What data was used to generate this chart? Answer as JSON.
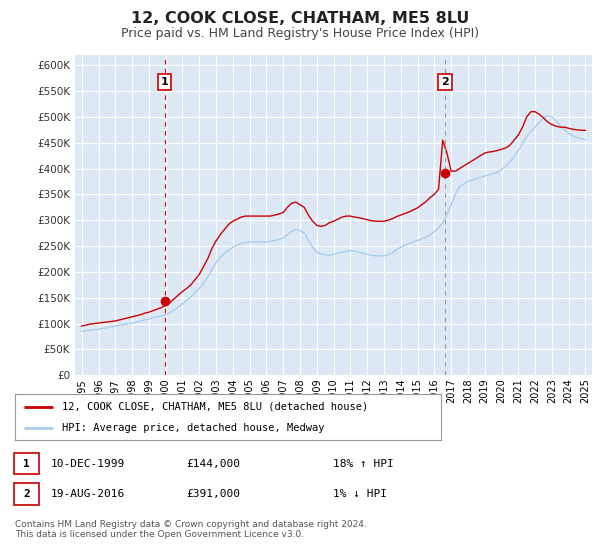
{
  "title": "12, COOK CLOSE, CHATHAM, ME5 8LU",
  "subtitle": "Price paid vs. HM Land Registry's House Price Index (HPI)",
  "title_fontsize": 11.5,
  "subtitle_fontsize": 9,
  "background_color": "#ffffff",
  "plot_bg_color": "#dce9f5",
  "grid_color": "#ffffff",
  "red_line_color": "#cc0000",
  "blue_line_color": "#aaccee",
  "marker_color": "#cc0000",
  "ylim": [
    0,
    620000
  ],
  "yticks": [
    0,
    50000,
    100000,
    150000,
    200000,
    250000,
    300000,
    350000,
    400000,
    450000,
    500000,
    550000,
    600000
  ],
  "ytick_labels": [
    "£0",
    "£50K",
    "£100K",
    "£150K",
    "£200K",
    "£250K",
    "£300K",
    "£350K",
    "£400K",
    "£450K",
    "£500K",
    "£550K",
    "£600K"
  ],
  "xlim_start": 1994.6,
  "xlim_end": 2025.4,
  "xticks": [
    1995,
    1996,
    1997,
    1998,
    1999,
    2000,
    2001,
    2002,
    2003,
    2004,
    2005,
    2006,
    2007,
    2008,
    2009,
    2010,
    2011,
    2012,
    2013,
    2014,
    2015,
    2016,
    2017,
    2018,
    2019,
    2020,
    2021,
    2022,
    2023,
    2024,
    2025
  ],
  "legend_label_red": "12, COOK CLOSE, CHATHAM, ME5 8LU (detached house)",
  "legend_label_blue": "HPI: Average price, detached house, Medway",
  "sale1_x": 1999.94,
  "sale1_y": 144000,
  "sale1_label": "1",
  "sale1_vline_color": "#cc0000",
  "sale2_x": 2016.63,
  "sale2_y": 391000,
  "sale2_label": "2",
  "sale2_vline_color": "#999999",
  "table_row1_num": "1",
  "table_row1_date": "10-DEC-1999",
  "table_row1_price": "£144,000",
  "table_row1_hpi": "18% ↑ HPI",
  "table_row2_num": "2",
  "table_row2_date": "19-AUG-2016",
  "table_row2_price": "£391,000",
  "table_row2_hpi": "1% ↓ HPI",
  "footer_text": "Contains HM Land Registry data © Crown copyright and database right 2024.\nThis data is licensed under the Open Government Licence v3.0.",
  "red_line_data_x": [
    1995.0,
    1995.25,
    1995.5,
    1995.75,
    1996.0,
    1996.25,
    1996.5,
    1996.75,
    1997.0,
    1997.25,
    1997.5,
    1997.75,
    1998.0,
    1998.25,
    1998.5,
    1998.75,
    1999.0,
    1999.25,
    1999.5,
    1999.75,
    2000.0,
    2000.25,
    2000.5,
    2000.75,
    2001.0,
    2001.25,
    2001.5,
    2001.75,
    2002.0,
    2002.25,
    2002.5,
    2002.75,
    2003.0,
    2003.25,
    2003.5,
    2003.75,
    2004.0,
    2004.25,
    2004.5,
    2004.75,
    2005.0,
    2005.25,
    2005.5,
    2005.75,
    2006.0,
    2006.25,
    2006.5,
    2006.75,
    2007.0,
    2007.25,
    2007.5,
    2007.75,
    2008.0,
    2008.25,
    2008.5,
    2008.75,
    2009.0,
    2009.25,
    2009.5,
    2009.75,
    2010.0,
    2010.25,
    2010.5,
    2010.75,
    2011.0,
    2011.25,
    2011.5,
    2011.75,
    2012.0,
    2012.25,
    2012.5,
    2012.75,
    2013.0,
    2013.25,
    2013.5,
    2013.75,
    2014.0,
    2014.25,
    2014.5,
    2014.75,
    2015.0,
    2015.25,
    2015.5,
    2015.75,
    2016.0,
    2016.25,
    2016.5,
    2016.75,
    2017.0,
    2017.25,
    2017.5,
    2017.75,
    2018.0,
    2018.25,
    2018.5,
    2018.75,
    2019.0,
    2019.25,
    2019.5,
    2019.75,
    2020.0,
    2020.25,
    2020.5,
    2020.75,
    2021.0,
    2021.25,
    2021.5,
    2021.75,
    2022.0,
    2022.25,
    2022.5,
    2022.75,
    2023.0,
    2023.25,
    2023.5,
    2023.75,
    2024.0,
    2024.25,
    2024.5,
    2024.75,
    2025.0
  ],
  "red_line_data_y": [
    95000,
    97000,
    99000,
    100000,
    101000,
    102000,
    103000,
    104000,
    105000,
    107000,
    109000,
    111000,
    113000,
    115000,
    117000,
    120000,
    122000,
    125000,
    128000,
    131000,
    135000,
    140000,
    148000,
    155000,
    162000,
    168000,
    175000,
    185000,
    195000,
    210000,
    225000,
    245000,
    260000,
    272000,
    282000,
    292000,
    298000,
    302000,
    306000,
    308000,
    308000,
    308000,
    308000,
    308000,
    308000,
    308000,
    310000,
    312000,
    315000,
    325000,
    333000,
    335000,
    330000,
    325000,
    310000,
    298000,
    290000,
    288000,
    290000,
    295000,
    298000,
    302000,
    306000,
    308000,
    308000,
    306000,
    305000,
    303000,
    301000,
    299000,
    298000,
    298000,
    298000,
    300000,
    303000,
    307000,
    310000,
    313000,
    316000,
    320000,
    324000,
    330000,
    336000,
    344000,
    350000,
    360000,
    455000,
    430000,
    395000,
    395000,
    400000,
    405000,
    410000,
    415000,
    420000,
    425000,
    430000,
    432000,
    433000,
    435000,
    437000,
    440000,
    445000,
    455000,
    465000,
    480000,
    500000,
    510000,
    510000,
    505000,
    498000,
    490000,
    485000,
    482000,
    480000,
    480000,
    478000,
    476000,
    475000,
    474000,
    474000
  ],
  "blue_line_data_x": [
    1995.0,
    1995.25,
    1995.5,
    1995.75,
    1996.0,
    1996.25,
    1996.5,
    1996.75,
    1997.0,
    1997.25,
    1997.5,
    1997.75,
    1998.0,
    1998.25,
    1998.5,
    1998.75,
    1999.0,
    1999.25,
    1999.5,
    1999.75,
    2000.0,
    2000.25,
    2000.5,
    2000.75,
    2001.0,
    2001.25,
    2001.5,
    2001.75,
    2002.0,
    2002.25,
    2002.5,
    2002.75,
    2003.0,
    2003.25,
    2003.5,
    2003.75,
    2004.0,
    2004.25,
    2004.5,
    2004.75,
    2005.0,
    2005.25,
    2005.5,
    2005.75,
    2006.0,
    2006.25,
    2006.5,
    2006.75,
    2007.0,
    2007.25,
    2007.5,
    2007.75,
    2008.0,
    2008.25,
    2008.5,
    2008.75,
    2009.0,
    2009.25,
    2009.5,
    2009.75,
    2010.0,
    2010.25,
    2010.5,
    2010.75,
    2011.0,
    2011.25,
    2011.5,
    2011.75,
    2012.0,
    2012.25,
    2012.5,
    2012.75,
    2013.0,
    2013.25,
    2013.5,
    2013.75,
    2014.0,
    2014.25,
    2014.5,
    2014.75,
    2015.0,
    2015.25,
    2015.5,
    2015.75,
    2016.0,
    2016.25,
    2016.5,
    2016.75,
    2017.0,
    2017.25,
    2017.5,
    2017.75,
    2018.0,
    2018.25,
    2018.5,
    2018.75,
    2019.0,
    2019.25,
    2019.5,
    2019.75,
    2020.0,
    2020.25,
    2020.5,
    2020.75,
    2021.0,
    2021.25,
    2021.5,
    2021.75,
    2022.0,
    2022.25,
    2022.5,
    2022.75,
    2023.0,
    2023.25,
    2023.5,
    2023.75,
    2024.0,
    2024.25,
    2024.5,
    2024.75,
    2025.0
  ],
  "blue_line_data_y": [
    85000,
    86000,
    87000,
    88000,
    89000,
    90500,
    92000,
    93500,
    95000,
    96500,
    98000,
    99500,
    101000,
    103000,
    105000,
    107000,
    109000,
    111000,
    113000,
    115000,
    117000,
    121000,
    126000,
    132000,
    138000,
    145000,
    152000,
    160000,
    168000,
    178000,
    190000,
    205000,
    218000,
    228000,
    236000,
    242000,
    248000,
    252000,
    255000,
    257000,
    258000,
    258000,
    258000,
    258000,
    258000,
    259000,
    261000,
    263000,
    265000,
    272000,
    278000,
    282000,
    280000,
    275000,
    262000,
    248000,
    238000,
    235000,
    233000,
    232000,
    234000,
    236000,
    238000,
    240000,
    241000,
    240000,
    238000,
    236000,
    234000,
    232000,
    231000,
    231000,
    231000,
    233000,
    237000,
    243000,
    248000,
    252000,
    255000,
    258000,
    261000,
    264000,
    267000,
    272000,
    278000,
    285000,
    295000,
    310000,
    330000,
    350000,
    365000,
    370000,
    375000,
    378000,
    380000,
    383000,
    385000,
    388000,
    390000,
    393000,
    398000,
    405000,
    413000,
    423000,
    435000,
    448000,
    462000,
    472000,
    480000,
    490000,
    498000,
    502000,
    500000,
    492000,
    483000,
    475000,
    468000,
    463000,
    460000,
    458000,
    456000
  ]
}
